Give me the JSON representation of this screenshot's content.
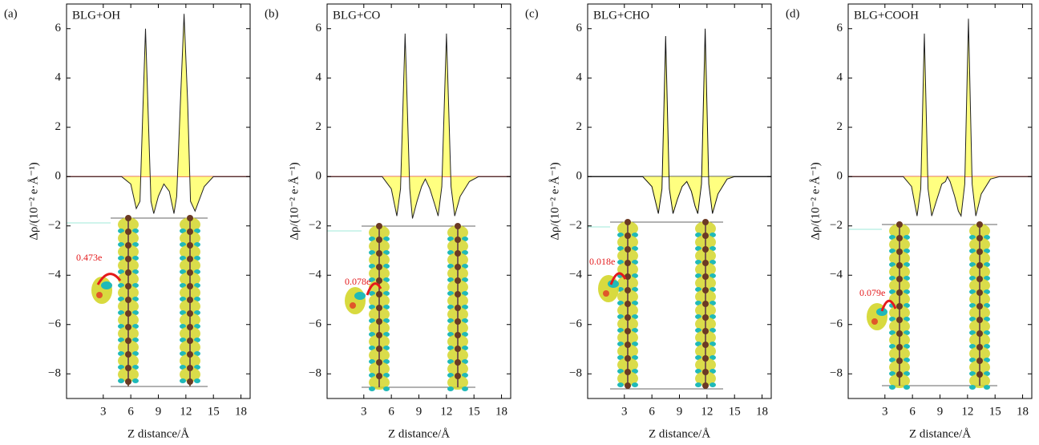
{
  "chart_data": [
    {
      "type": "line",
      "panel": "(a)",
      "title": "BLG+OH",
      "x_label": "Z distance/Å",
      "y_label": "Δρ/(10⁻² e·Å⁻¹)",
      "annotation": "0.473e",
      "x": [
        -1,
        5,
        6,
        6.6,
        7.0,
        7.3,
        7.6,
        7.9,
        8.2,
        8.5,
        9.0,
        9.6,
        10.2,
        10.7,
        11.0,
        11.4,
        11.8,
        12.2,
        12.5,
        13.0,
        14.0,
        15,
        19
      ],
      "series": [
        {
          "color": "#222222",
          "fill": "#ffff80",
          "values": [
            0,
            0,
            -0.3,
            -1.3,
            -1.0,
            2.5,
            6.0,
            2.5,
            -1.0,
            -1.5,
            -0.8,
            -0.3,
            -0.6,
            -1.5,
            -0.8,
            3.0,
            6.6,
            3.0,
            -1.0,
            -1.4,
            -0.4,
            0,
            0
          ]
        }
      ],
      "baseline_color": "#d62728",
      "xlim": [
        -1,
        19
      ],
      "xticks": [
        3,
        6,
        9,
        12,
        15,
        18
      ],
      "ylim": [
        -9,
        7
      ],
      "yticks": [
        {
          "value": -8,
          "label": "−8"
        },
        {
          "value": -6,
          "label": "−6"
        },
        {
          "value": -4,
          "label": "−4"
        },
        {
          "value": -2,
          "label": "−2"
        },
        0,
        2,
        4,
        6
      ]
    },
    {
      "type": "line",
      "panel": "(b)",
      "title": "BLG+CO",
      "x_label": "Z distance/Å",
      "y_label": "Δρ/(10⁻² e·Å⁻¹)",
      "annotation": "0.078e",
      "x": [
        -1,
        5,
        6,
        6.6,
        7.0,
        7.5,
        8.0,
        8.3,
        8.8,
        9.3,
        9.7,
        10.2,
        10.7,
        11.1,
        11.5,
        12.0,
        12.5,
        12.9,
        13.5,
        14.5,
        15.5,
        19
      ],
      "series": [
        {
          "color": "#222222",
          "fill": "#ffff80",
          "values": [
            0,
            0,
            -0.5,
            -1.6,
            -0.5,
            5.8,
            -0.5,
            -1.7,
            -1.0,
            -0.4,
            -0.1,
            -0.5,
            -1.1,
            -1.6,
            -0.4,
            5.8,
            -0.4,
            -1.6,
            -0.8,
            -0.2,
            0,
            0
          ]
        }
      ],
      "baseline_color": "#d62728",
      "xlim": [
        -1,
        19
      ],
      "xticks": [
        3,
        6,
        9,
        12,
        15,
        18
      ],
      "ylim": [
        -9,
        7
      ],
      "yticks": [
        {
          "value": -8,
          "label": "−8"
        },
        {
          "value": -6,
          "label": "−6"
        },
        {
          "value": -4,
          "label": "−4"
        },
        {
          "value": -2,
          "label": "−2"
        },
        0,
        2,
        4,
        6
      ]
    },
    {
      "type": "line",
      "panel": "(c)",
      "title": "BLG+CHO",
      "x_label": "Z distance/Å",
      "y_label": "Δρ/(10⁻² e·Å⁻¹)",
      "annotation": "0.018e",
      "x": [
        -1,
        5,
        6,
        6.7,
        7.1,
        7.5,
        7.9,
        8.3,
        8.8,
        9.3,
        9.8,
        10.3,
        10.7,
        11.0,
        11.4,
        11.8,
        12.2,
        12.6,
        13.2,
        14.2,
        15,
        19
      ],
      "series": [
        {
          "color": "#111111",
          "fill": "#ffff80",
          "values": [
            0,
            0,
            -0.4,
            -1.5,
            -0.5,
            5.7,
            -0.5,
            -1.5,
            -0.9,
            -0.4,
            -0.2,
            -0.6,
            -1.2,
            -1.5,
            -0.3,
            6.0,
            -0.3,
            -1.5,
            -0.7,
            -0.1,
            0,
            0
          ]
        }
      ],
      "baseline_color": "#111111",
      "xlim": [
        -1,
        19
      ],
      "xticks": [
        3,
        6,
        9,
        12,
        15,
        18
      ],
      "ylim": [
        -9,
        7
      ],
      "yticks": [
        {
          "value": -8,
          "label": "−8"
        },
        {
          "value": -6,
          "label": "−6"
        },
        {
          "value": -4,
          "label": "−4"
        },
        {
          "value": -2,
          "label": "−2"
        },
        0,
        2,
        4,
        6
      ]
    },
    {
      "type": "line",
      "panel": "(d)",
      "title": "BLG+COOH",
      "x_label": "Z distance/Å",
      "y_label": "Δρ/(10⁻² e·Å⁻¹)",
      "annotation": "0.079e",
      "x": [
        -1,
        5,
        5.9,
        6.5,
        6.9,
        7.3,
        7.7,
        8.1,
        8.6,
        9.2,
        9.6,
        9.8,
        10.1,
        10.6,
        11.0,
        11.3,
        11.7,
        12.1,
        12.5,
        12.9,
        13.5,
        14.5,
        15.5,
        19
      ],
      "series": [
        {
          "color": "#222222",
          "fill": "#ffff80",
          "values": [
            0,
            0,
            -0.4,
            -1.6,
            -0.5,
            5.8,
            -0.5,
            -1.6,
            -1.0,
            -0.3,
            -0.2,
            0,
            -0.2,
            -0.8,
            -1.4,
            -1.6,
            -0.3,
            6.4,
            -0.3,
            -1.6,
            -0.7,
            -0.1,
            0,
            0
          ]
        }
      ],
      "baseline_color": "#d62728",
      "xlim": [
        -1,
        19
      ],
      "xticks": [
        3,
        6,
        9,
        12,
        15,
        18
      ],
      "ylim": [
        -9,
        7
      ],
      "yticks": [
        {
          "value": -8,
          "label": "−8"
        },
        {
          "value": -6,
          "label": "−6"
        },
        {
          "value": -4,
          "label": "−4"
        },
        {
          "value": -2,
          "label": "−2"
        },
        0,
        2,
        4,
        6
      ]
    }
  ]
}
